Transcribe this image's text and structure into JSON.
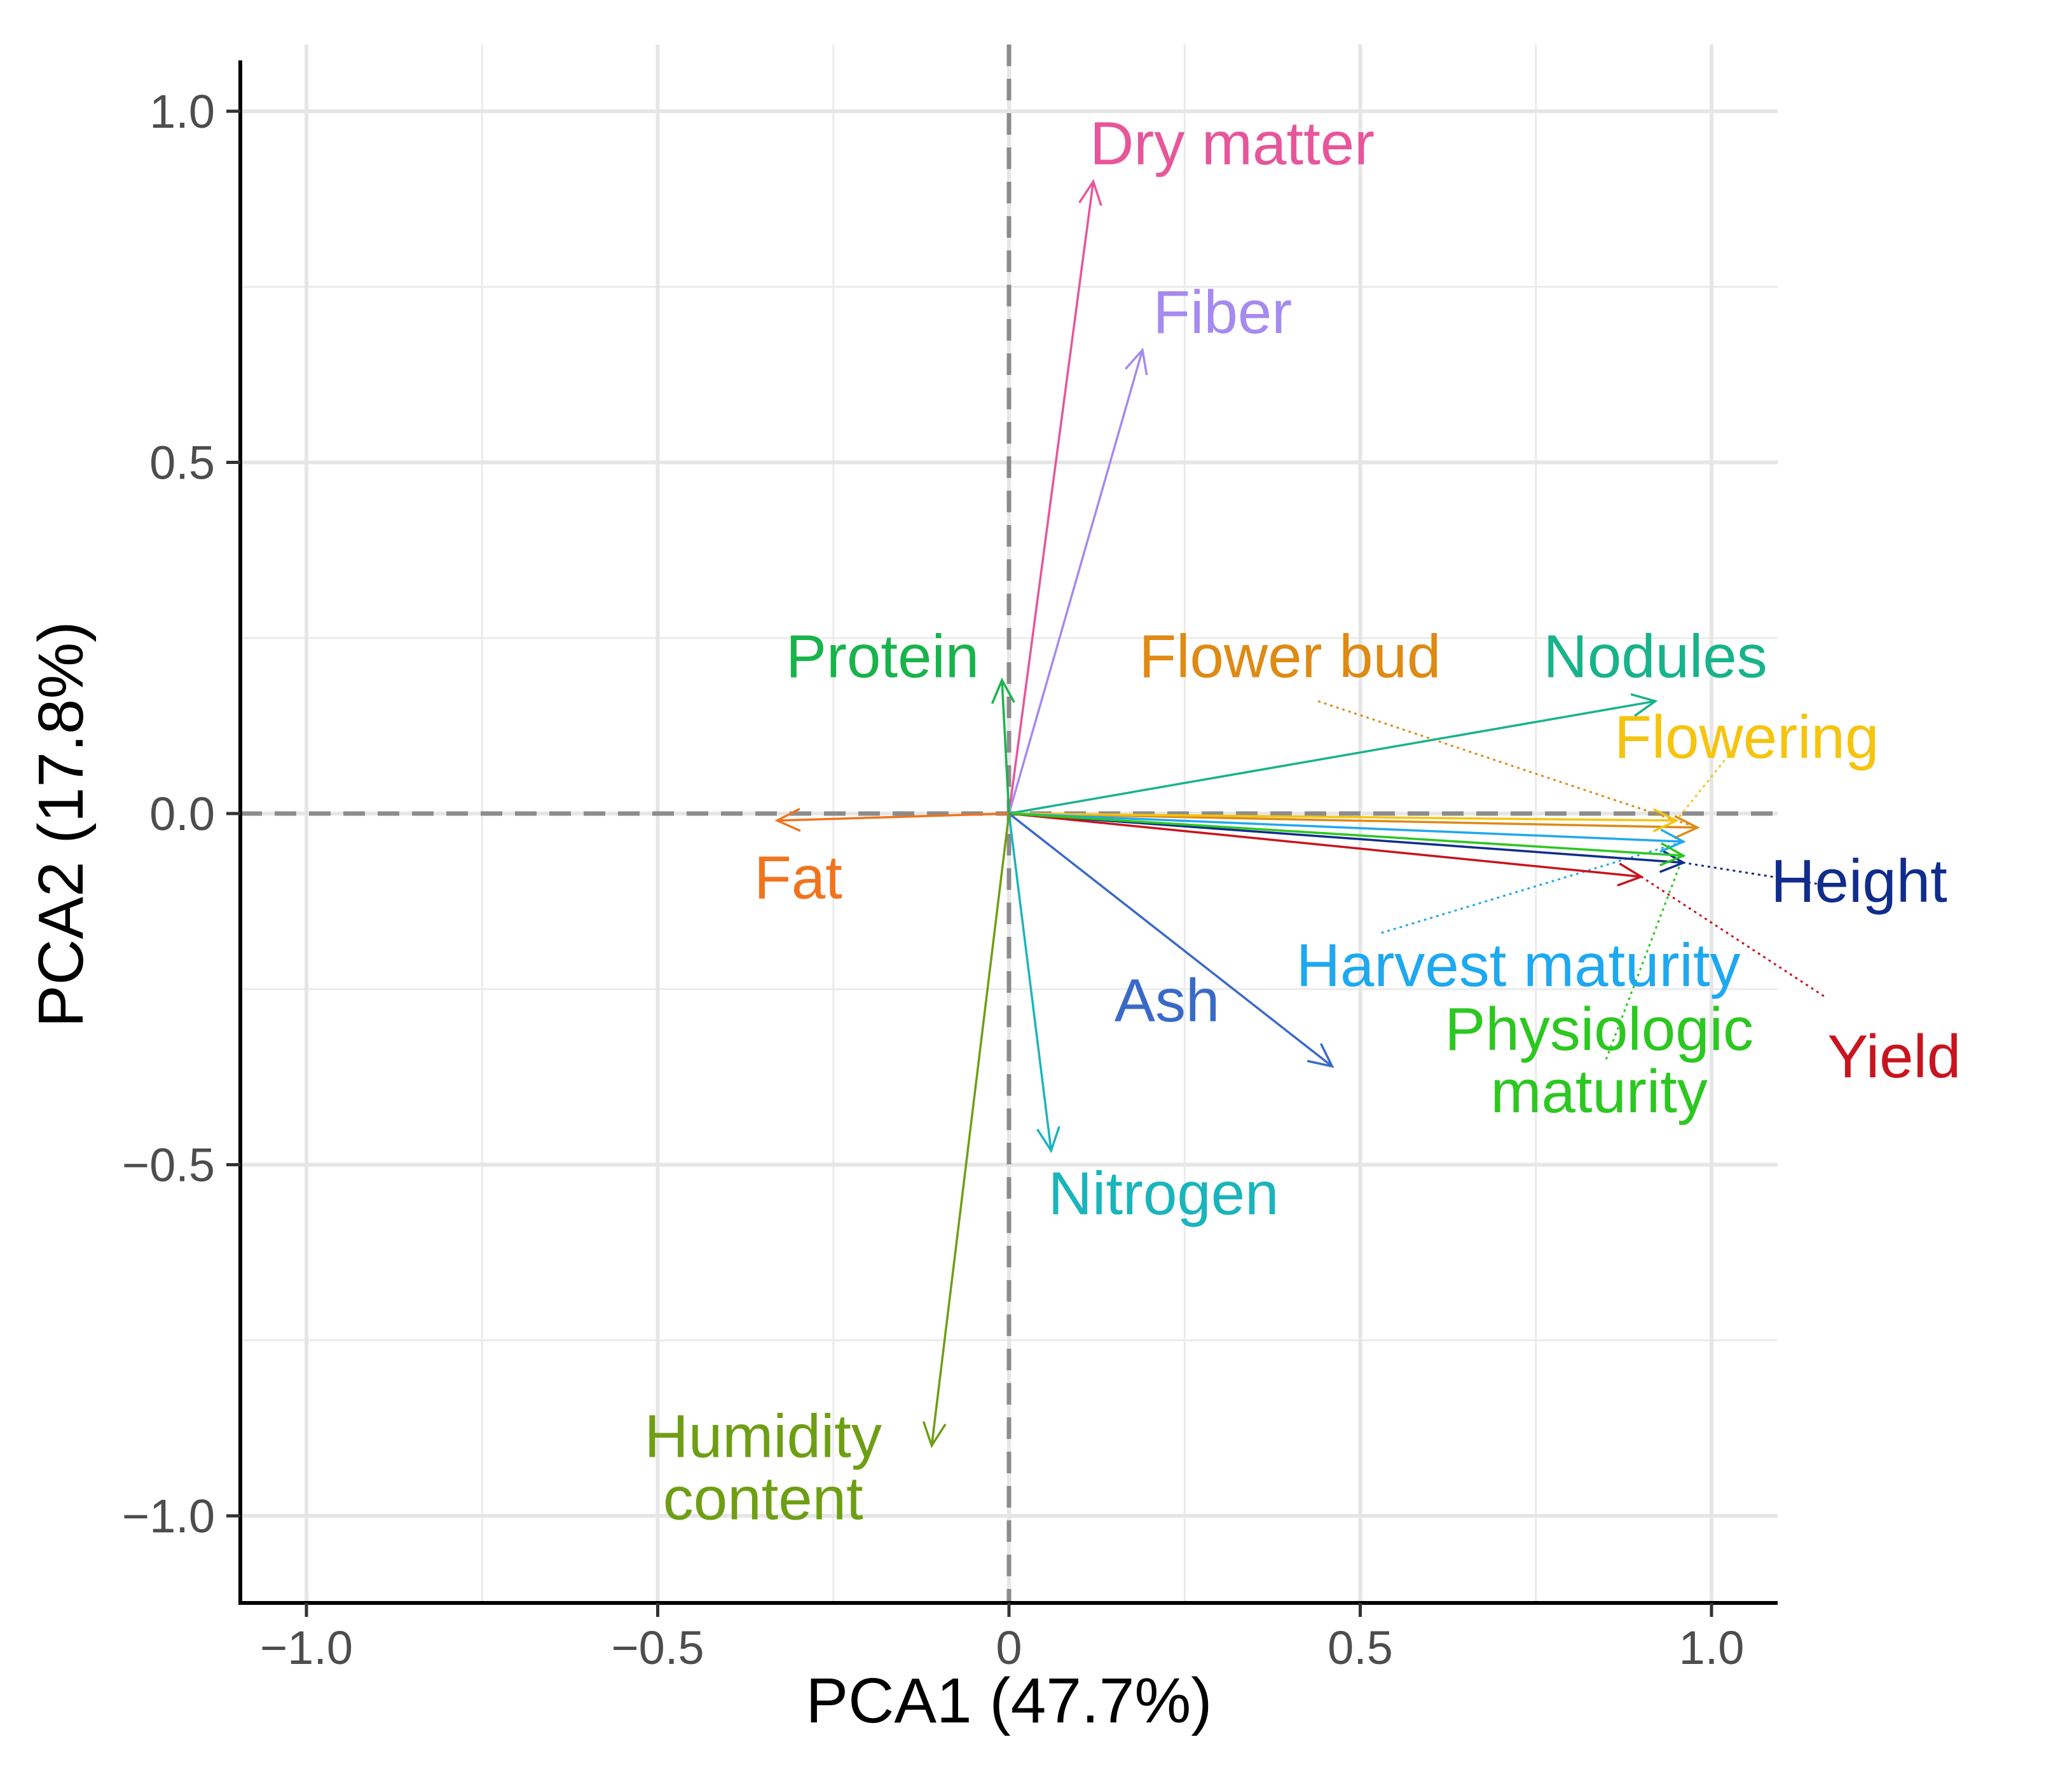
{
  "chart_data": {
    "type": "biplot",
    "title": "",
    "xlabel": "PCA1 (47.7%)",
    "ylabel": "PCA2 (17.8%)",
    "xlim": [
      -1.1,
      1.1
    ],
    "ylim": [
      -1.1,
      1.05
    ],
    "xticks": [
      -1.0,
      -0.5,
      0,
      0.5,
      1.0
    ],
    "xtick_labels": [
      "−1.0",
      "−0.5",
      "0",
      "0.5",
      "1.0"
    ],
    "yticks": [
      1.0,
      0.5,
      0.0,
      -0.5,
      -1.0
    ],
    "ytick_labels": [
      "1.0",
      "0.5",
      "0.0",
      "−0.5",
      "−1.0"
    ],
    "grid": true,
    "reference_lines": {
      "x": 0,
      "y": 0,
      "style": "dashed"
    },
    "vectors": [
      {
        "name": "Dry matter",
        "x": 0.12,
        "y": 0.9,
        "color": "#e7559a",
        "label_lines": [
          "Dry matter"
        ],
        "label_x": 0.115,
        "label_y": 0.955,
        "anchor": "start",
        "leader": false
      },
      {
        "name": "Fiber",
        "x": 0.19,
        "y": 0.66,
        "color": "#a58af0",
        "label_lines": [
          "Fiber"
        ],
        "label_x": 0.205,
        "label_y": 0.715,
        "anchor": "start",
        "leader": false
      },
      {
        "name": "Protein",
        "x": -0.01,
        "y": 0.19,
        "color": "#19b34b",
        "label_lines": [
          "Protein"
        ],
        "label_x": -0.18,
        "label_y": 0.225,
        "anchor": "middle",
        "leader": false
      },
      {
        "name": "Flower bud",
        "x": 0.98,
        "y": -0.02,
        "color": "#de8a14",
        "label_lines": [
          "Flower bud"
        ],
        "label_x": 0.4,
        "label_y": 0.225,
        "anchor": "middle",
        "leader": true,
        "leader_from": [
          0.44,
          0.16
        ]
      },
      {
        "name": "Nodules",
        "x": 0.92,
        "y": 0.16,
        "color": "#18b38a",
        "label_lines": [
          "Nodules"
        ],
        "label_x": 0.92,
        "label_y": 0.225,
        "anchor": "middle",
        "leader": false
      },
      {
        "name": "Flowering",
        "x": 0.95,
        "y": -0.01,
        "color": "#f5c40f",
        "label_lines": [
          "Flowering"
        ],
        "label_x": 1.05,
        "label_y": 0.11,
        "anchor": "middle",
        "leader": true,
        "leader_from": [
          1.03,
          0.09
        ]
      },
      {
        "name": "Fat",
        "x": -0.33,
        "y": -0.01,
        "color": "#f0741e",
        "label_lines": [
          "Fat"
        ],
        "label_x": -0.3,
        "label_y": -0.09,
        "anchor": "middle",
        "leader": false
      },
      {
        "name": "Height",
        "x": 0.96,
        "y": -0.07,
        "color": "#102d8c",
        "label_lines": [
          "Height"
        ],
        "label_x": 1.21,
        "label_y": -0.095,
        "anchor": "middle",
        "leader": true,
        "leader_from": [
          1.15,
          -0.1
        ]
      },
      {
        "name": "Harvest maturity",
        "x": 0.96,
        "y": -0.04,
        "color": "#1ea8f0",
        "label_lines": [
          "Harvest maturity"
        ],
        "label_x": 0.725,
        "label_y": -0.215,
        "anchor": "middle",
        "leader": true,
        "leader_from": [
          0.53,
          -0.17
        ]
      },
      {
        "name": "Yield",
        "x": 0.9,
        "y": -0.09,
        "color": "#c8141e",
        "label_lines": [
          "Yield"
        ],
        "label_x": 1.26,
        "label_y": -0.345,
        "anchor": "middle",
        "leader": true,
        "leader_from": [
          1.16,
          -0.26
        ]
      },
      {
        "name": "Physiologic maturity",
        "x": 0.96,
        "y": -0.06,
        "color": "#2cc720",
        "label_lines": [
          "Physiologic",
          "maturity"
        ],
        "label_x": 0.84,
        "label_y": -0.35,
        "anchor": "middle",
        "leader": true,
        "leader_from": [
          0.85,
          -0.35
        ]
      },
      {
        "name": "Ash",
        "x": 0.46,
        "y": -0.36,
        "color": "#3a6ac8",
        "label_lines": [
          "Ash"
        ],
        "label_x": 0.225,
        "label_y": -0.265,
        "anchor": "middle",
        "leader": false
      },
      {
        "name": "Nitrogen",
        "x": 0.06,
        "y": -0.48,
        "color": "#1ab4bc",
        "label_lines": [
          "Nitrogen"
        ],
        "label_x": 0.22,
        "label_y": -0.54,
        "anchor": "middle",
        "leader": false
      },
      {
        "name": "Humidity content",
        "x": -0.11,
        "y": -0.9,
        "color": "#6e9e14",
        "label_lines": [
          "Humidity",
          "content"
        ],
        "label_x": -0.35,
        "label_y": -0.93,
        "anchor": "middle",
        "leader": false
      }
    ]
  }
}
